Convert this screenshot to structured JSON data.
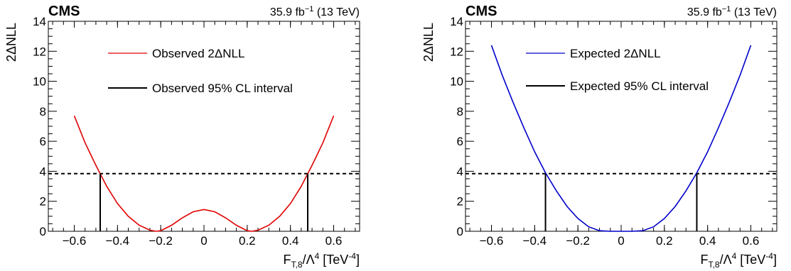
{
  "chart_data": [
    {
      "type": "line",
      "experiment": "CMS",
      "lumi": {
        "value": "35.9",
        "unit": "fb",
        "exponent": "−1",
        "energy": "(13 TeV)"
      },
      "xlabel": {
        "main": "F",
        "sub": "T,8",
        "mid": "/Λ",
        "sup": "4",
        "unit": "[TeV",
        "unit_sup": "-4",
        "close": "]"
      },
      "ylabel": "2ΔNLL",
      "xlim": [
        -0.72,
        0.72
      ],
      "ylim": [
        0,
        14
      ],
      "x_ticks": [
        "−0.6",
        "−0.4",
        "−0.2",
        "0",
        "0.2",
        "0.4",
        "0.6"
      ],
      "x_tick_values": [
        -0.6,
        -0.4,
        -0.2,
        0,
        0.2,
        0.4,
        0.6
      ],
      "y_ticks": [
        "0",
        "2",
        "4",
        "6",
        "8",
        "10",
        "12",
        "14"
      ],
      "y_tick_values": [
        0,
        2,
        4,
        6,
        8,
        10,
        12,
        14
      ],
      "threshold": 3.84,
      "series": [
        {
          "name": "Observed 2ΔNLL",
          "color": "#e00000",
          "x": [
            -0.6,
            -0.55,
            -0.5,
            -0.45,
            -0.4,
            -0.35,
            -0.3,
            -0.25,
            -0.22,
            -0.2,
            -0.15,
            -0.1,
            -0.05,
            0,
            0.05,
            0.1,
            0.15,
            0.2,
            0.22,
            0.25,
            0.3,
            0.35,
            0.4,
            0.45,
            0.5,
            0.55,
            0.6
          ],
          "y": [
            7.7,
            5.9,
            4.4,
            3.0,
            1.85,
            1.0,
            0.4,
            0.07,
            0.0,
            0.04,
            0.4,
            0.9,
            1.3,
            1.45,
            1.3,
            0.9,
            0.4,
            0.04,
            0.0,
            0.07,
            0.4,
            1.0,
            1.85,
            3.0,
            4.4,
            5.9,
            7.7
          ]
        }
      ],
      "interval_label": "Observed 95% CL interval",
      "interval": [
        -0.48,
        0.48
      ]
    },
    {
      "type": "line",
      "experiment": "CMS",
      "lumi": {
        "value": "35.9",
        "unit": "fb",
        "exponent": "−1",
        "energy": "(13 TeV)"
      },
      "xlabel": {
        "main": "F",
        "sub": "T,8",
        "mid": "/Λ",
        "sup": "4",
        "unit": "[TeV",
        "unit_sup": "-4",
        "close": "]"
      },
      "ylabel": "2ΔNLL",
      "xlim": [
        -0.72,
        0.72
      ],
      "ylim": [
        0,
        14
      ],
      "x_ticks": [
        "−0.6",
        "−0.4",
        "−0.2",
        "0",
        "0.2",
        "0.4",
        "0.6"
      ],
      "x_tick_values": [
        -0.6,
        -0.4,
        -0.2,
        0,
        0.2,
        0.4,
        0.6
      ],
      "y_ticks": [
        "0",
        "2",
        "4",
        "6",
        "8",
        "10",
        "12",
        "14"
      ],
      "y_tick_values": [
        0,
        2,
        4,
        6,
        8,
        10,
        12,
        14
      ],
      "threshold": 3.84,
      "series": [
        {
          "name": "Expected 2ΔNLL",
          "color": "#0000cc",
          "x": [
            -0.6,
            -0.55,
            -0.5,
            -0.45,
            -0.4,
            -0.35,
            -0.3,
            -0.25,
            -0.2,
            -0.15,
            -0.1,
            -0.05,
            0,
            0.05,
            0.1,
            0.15,
            0.2,
            0.25,
            0.3,
            0.35,
            0.4,
            0.45,
            0.5,
            0.55,
            0.6
          ],
          "y": [
            12.4,
            10.4,
            8.6,
            6.9,
            5.3,
            3.9,
            2.7,
            1.65,
            0.85,
            0.3,
            0.04,
            0.0,
            0.0,
            0.0,
            0.04,
            0.3,
            0.85,
            1.65,
            2.7,
            3.9,
            5.3,
            6.9,
            8.6,
            10.4,
            12.4
          ]
        }
      ],
      "interval_label": "Expected 95% CL interval",
      "interval": [
        -0.35,
        0.35
      ]
    }
  ]
}
